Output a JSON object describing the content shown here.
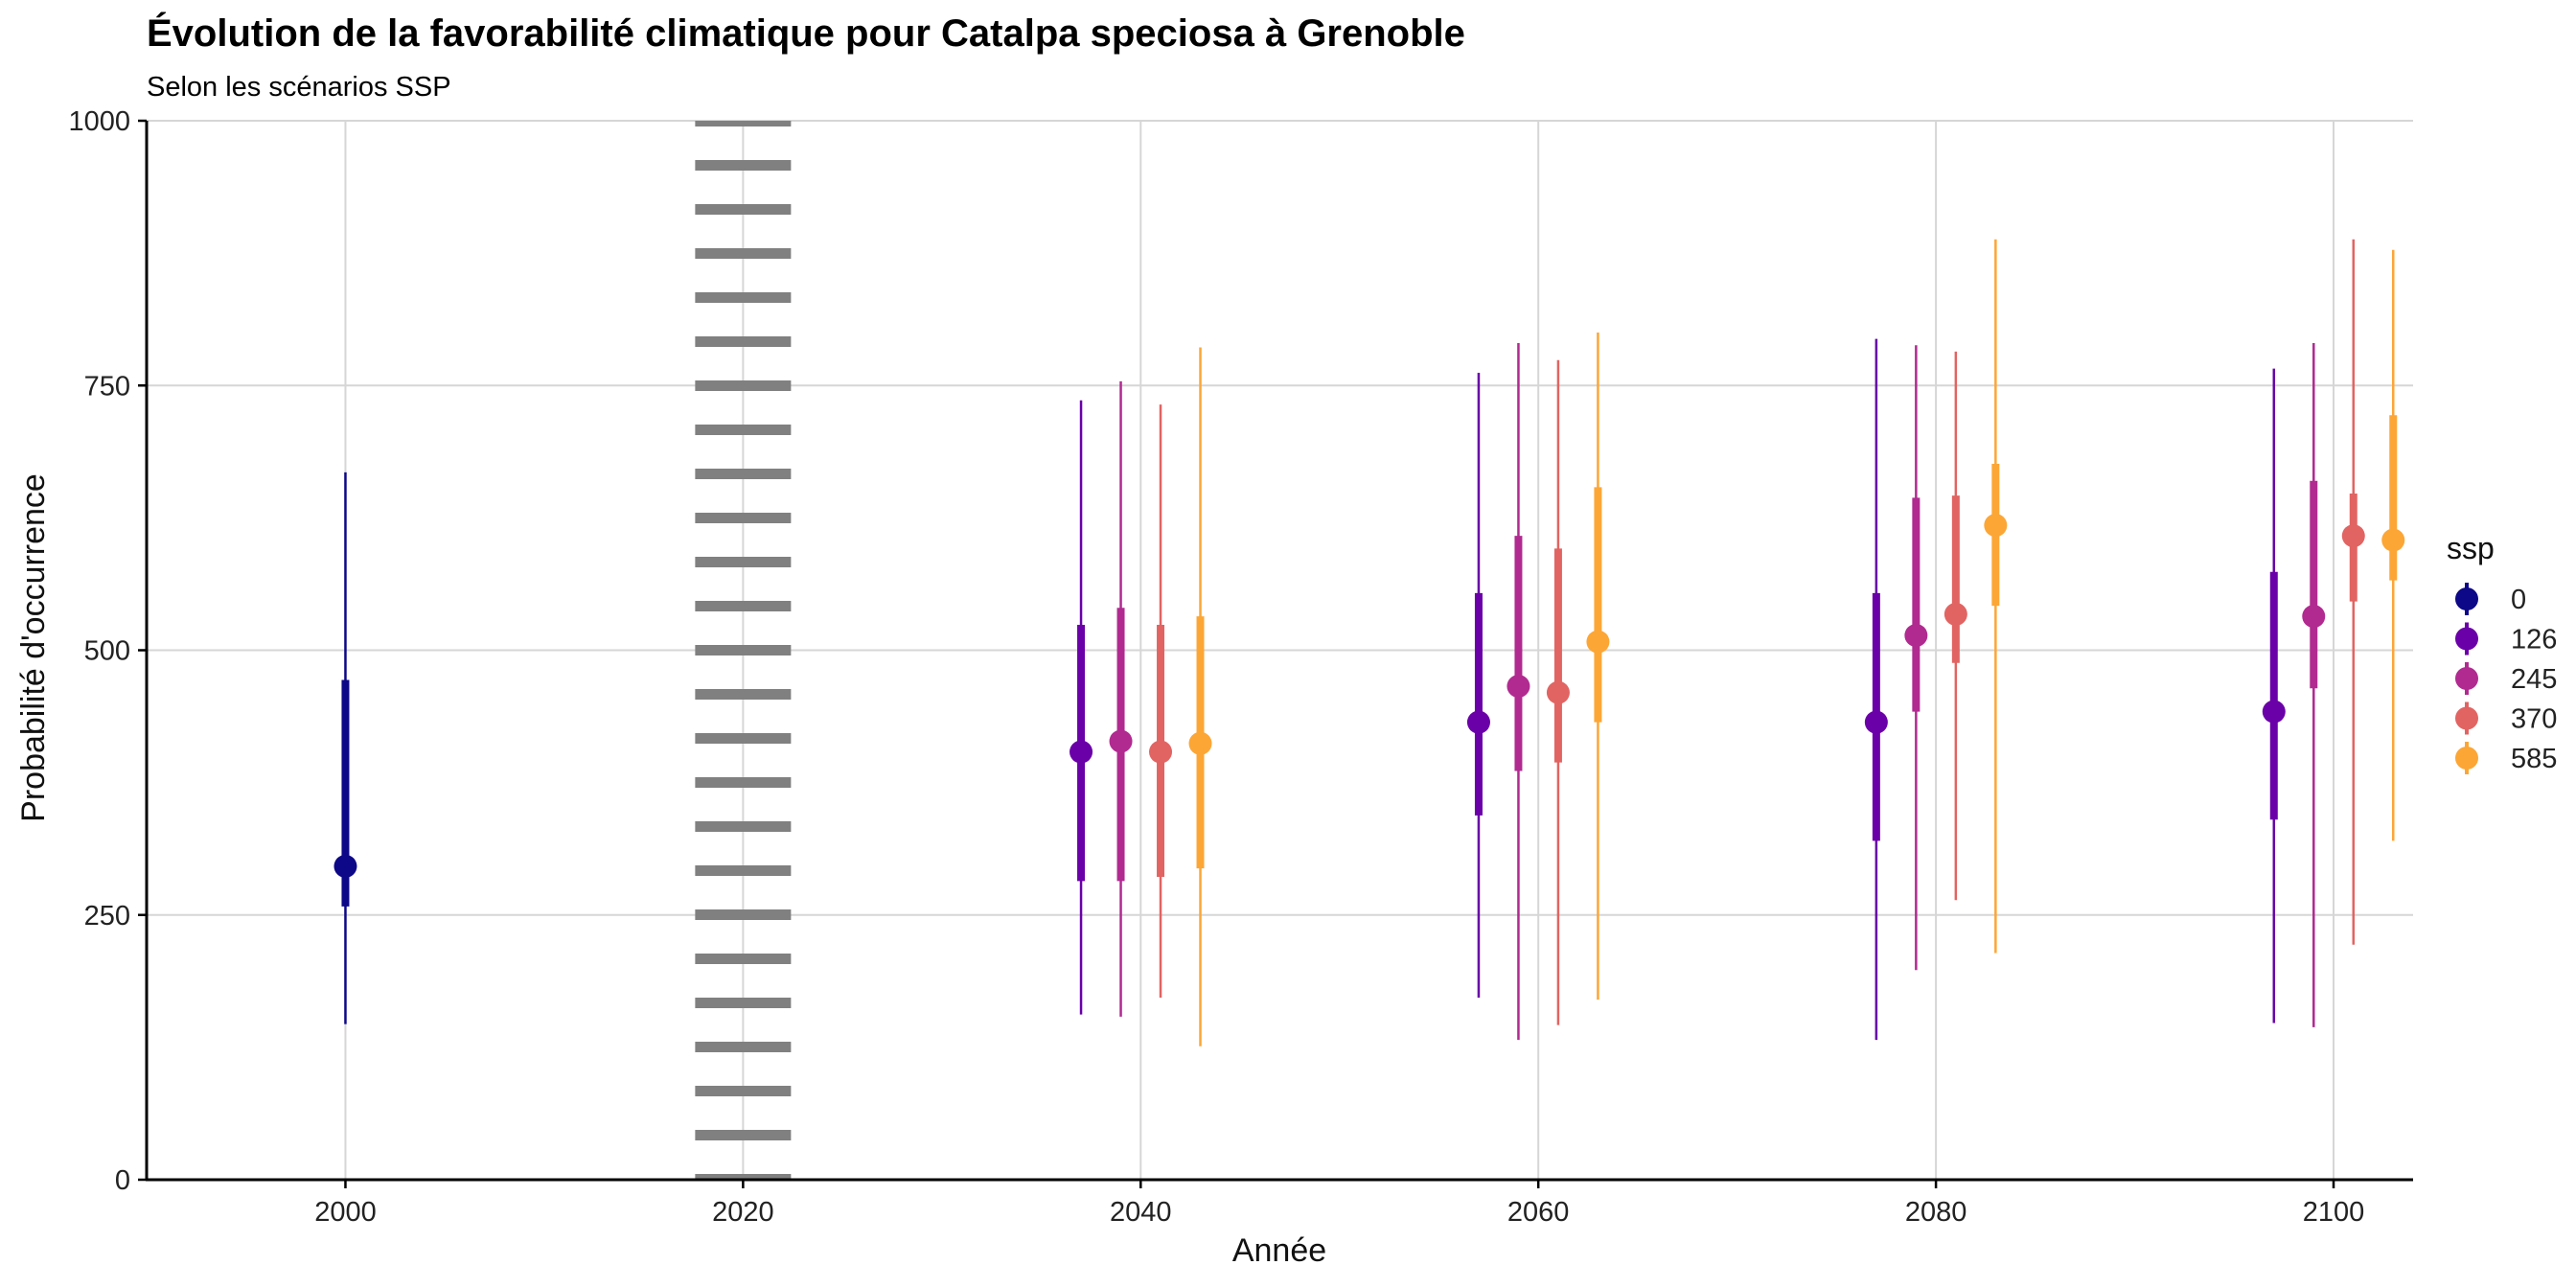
{
  "chart_data": {
    "type": "pointrange",
    "title": "Évolution de la favorabilité climatique pour Catalpa speciosa à Grenoble",
    "subtitle": "Selon les scénarios SSP",
    "xlabel": "Année",
    "ylabel": "Probabilité d'occurrence",
    "xlim": [
      1990,
      2104
    ],
    "ylim": [
      0,
      1000
    ],
    "x_ticks": [
      "2000",
      "2020",
      "2040",
      "2060",
      "2080",
      "2100"
    ],
    "y_ticks": [
      "0",
      "250",
      "500",
      "750",
      "1000"
    ],
    "grid": true,
    "reference_line": {
      "x": 2020,
      "style": "dotted",
      "color": "#808080"
    },
    "legend": {
      "title": "ssp",
      "position": "right",
      "entries": [
        {
          "label": "0",
          "color": "#0D0887"
        },
        {
          "label": "126",
          "color": "#6A00A8"
        },
        {
          "label": "245",
          "color": "#B12A90"
        },
        {
          "label": "370",
          "color": "#E16462"
        },
        {
          "label": "585",
          "color": "#FCA636"
        }
      ]
    },
    "series": [
      {
        "ssp": "0",
        "color": "#0D0887",
        "points": [
          {
            "year": 2000,
            "median": 296,
            "q25": 258,
            "q75": 472,
            "min": 147,
            "max": 668
          }
        ]
      },
      {
        "ssp": "126",
        "color": "#6A00A8",
        "points": [
          {
            "year": 2040,
            "median": 404,
            "q25": 282,
            "q75": 524,
            "min": 156,
            "max": 736
          },
          {
            "year": 2060,
            "median": 432,
            "q25": 344,
            "q75": 554,
            "min": 172,
            "max": 762
          },
          {
            "year": 2080,
            "median": 432,
            "q25": 320,
            "q75": 554,
            "min": 132,
            "max": 794
          },
          {
            "year": 2100,
            "median": 442,
            "q25": 340,
            "q75": 574,
            "min": 148,
            "max": 766
          }
        ]
      },
      {
        "ssp": "245",
        "color": "#B12A90",
        "points": [
          {
            "year": 2040,
            "median": 414,
            "q25": 282,
            "q75": 540,
            "min": 154,
            "max": 754
          },
          {
            "year": 2060,
            "median": 466,
            "q25": 386,
            "q75": 608,
            "min": 132,
            "max": 790
          },
          {
            "year": 2080,
            "median": 514,
            "q25": 442,
            "q75": 644,
            "min": 198,
            "max": 788
          },
          {
            "year": 2100,
            "median": 532,
            "q25": 464,
            "q75": 660,
            "min": 144,
            "max": 790
          }
        ]
      },
      {
        "ssp": "370",
        "color": "#E16462",
        "points": [
          {
            "year": 2040,
            "median": 404,
            "q25": 286,
            "q75": 524,
            "min": 172,
            "max": 732
          },
          {
            "year": 2060,
            "median": 460,
            "q25": 394,
            "q75": 596,
            "min": 146,
            "max": 774
          },
          {
            "year": 2080,
            "median": 534,
            "q25": 488,
            "q75": 646,
            "min": 264,
            "max": 782
          },
          {
            "year": 2100,
            "median": 608,
            "q25": 546,
            "q75": 648,
            "min": 222,
            "max": 888
          }
        ]
      },
      {
        "ssp": "585",
        "color": "#FCA636",
        "points": [
          {
            "year": 2040,
            "median": 412,
            "q25": 294,
            "q75": 532,
            "min": 126,
            "max": 786
          },
          {
            "year": 2060,
            "median": 508,
            "q25": 432,
            "q75": 654,
            "min": 170,
            "max": 800
          },
          {
            "year": 2080,
            "median": 618,
            "q25": 542,
            "q75": 676,
            "min": 214,
            "max": 888
          },
          {
            "year": 2100,
            "median": 604,
            "q25": 566,
            "q75": 722,
            "min": 320,
            "max": 878
          }
        ]
      }
    ]
  }
}
